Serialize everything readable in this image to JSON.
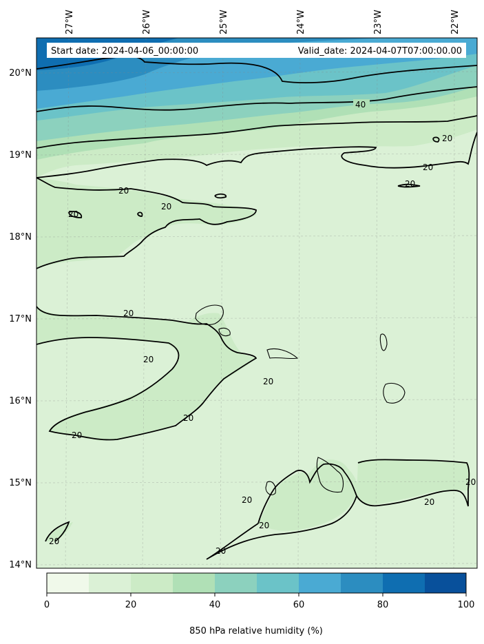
{
  "header": {
    "start_date": "Start date: 2024-04-06_00:00:00",
    "valid_date": "Valid_date: 2024-04-07T07:00:00.00"
  },
  "map": {
    "lon_labels": [
      "27°W",
      "26°W",
      "25°W",
      "24°W",
      "23°W",
      "22°W"
    ],
    "lat_labels": [
      "20°N",
      "19°N",
      "18°N",
      "17°N",
      "16°N",
      "15°N",
      "14°N"
    ],
    "gridlines": true,
    "field": "850 hPa relative humidity",
    "contour_levels_labeled": [
      "20",
      "40"
    ]
  },
  "colors": {
    "c0_10": "#f0f9ea",
    "c10_20": "#dbf1d6",
    "c20_30": "#ccebc6",
    "c30_40": "#b0e0b6",
    "c40_50": "#8cd1be",
    "c50_60": "#6bc3c8",
    "c60_70": "#4aaad3",
    "c70_80": "#2c8dc0",
    "c80_90": "#0f6eb1",
    "c90_100": "#08509b"
  },
  "colorbar": {
    "ticks": [
      "0",
      "20",
      "40",
      "60",
      "80",
      "100"
    ],
    "label": "850 hPa relative humidity (%)"
  }
}
